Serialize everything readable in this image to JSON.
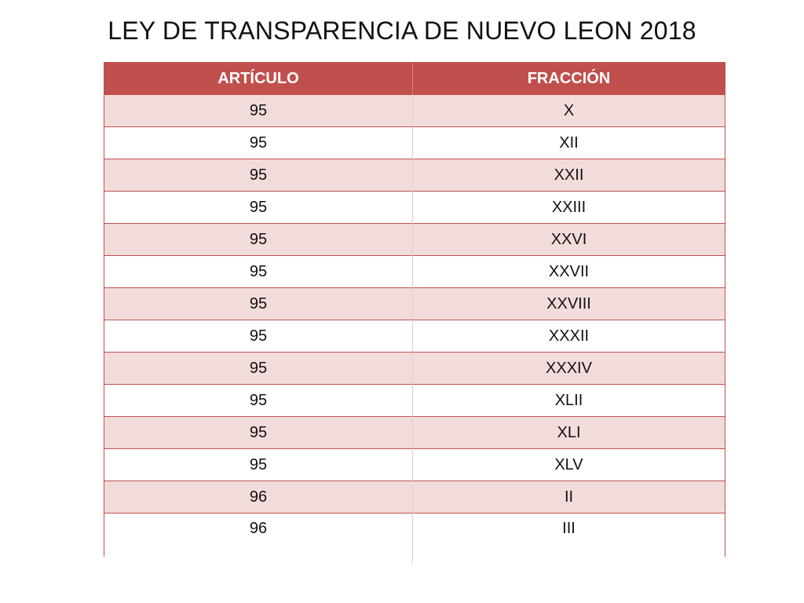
{
  "title": "LEY DE TRANSPARENCIA DE NUEVO LEON 2018",
  "colors": {
    "header_bg": "#c0504d",
    "header_text": "#ffffff",
    "band_row": "#f2dcdb",
    "plain_row": "#ffffff"
  },
  "table": {
    "headers": [
      "ARTÍCULO",
      "FRACCIÓN"
    ],
    "rows": [
      [
        "95",
        "X"
      ],
      [
        "95",
        "XII"
      ],
      [
        "95",
        "XXII"
      ],
      [
        "95",
        "XXIII"
      ],
      [
        "95",
        "XXVI"
      ],
      [
        "95",
        "XXVII"
      ],
      [
        "95",
        "XXVIII"
      ],
      [
        "95",
        "XXXII"
      ],
      [
        "95",
        "XXXIV"
      ],
      [
        "95",
        "XLII"
      ],
      [
        "95",
        "XLI"
      ],
      [
        "95",
        "XLV"
      ],
      [
        "96",
        "II"
      ],
      [
        "96",
        "III"
      ]
    ]
  }
}
